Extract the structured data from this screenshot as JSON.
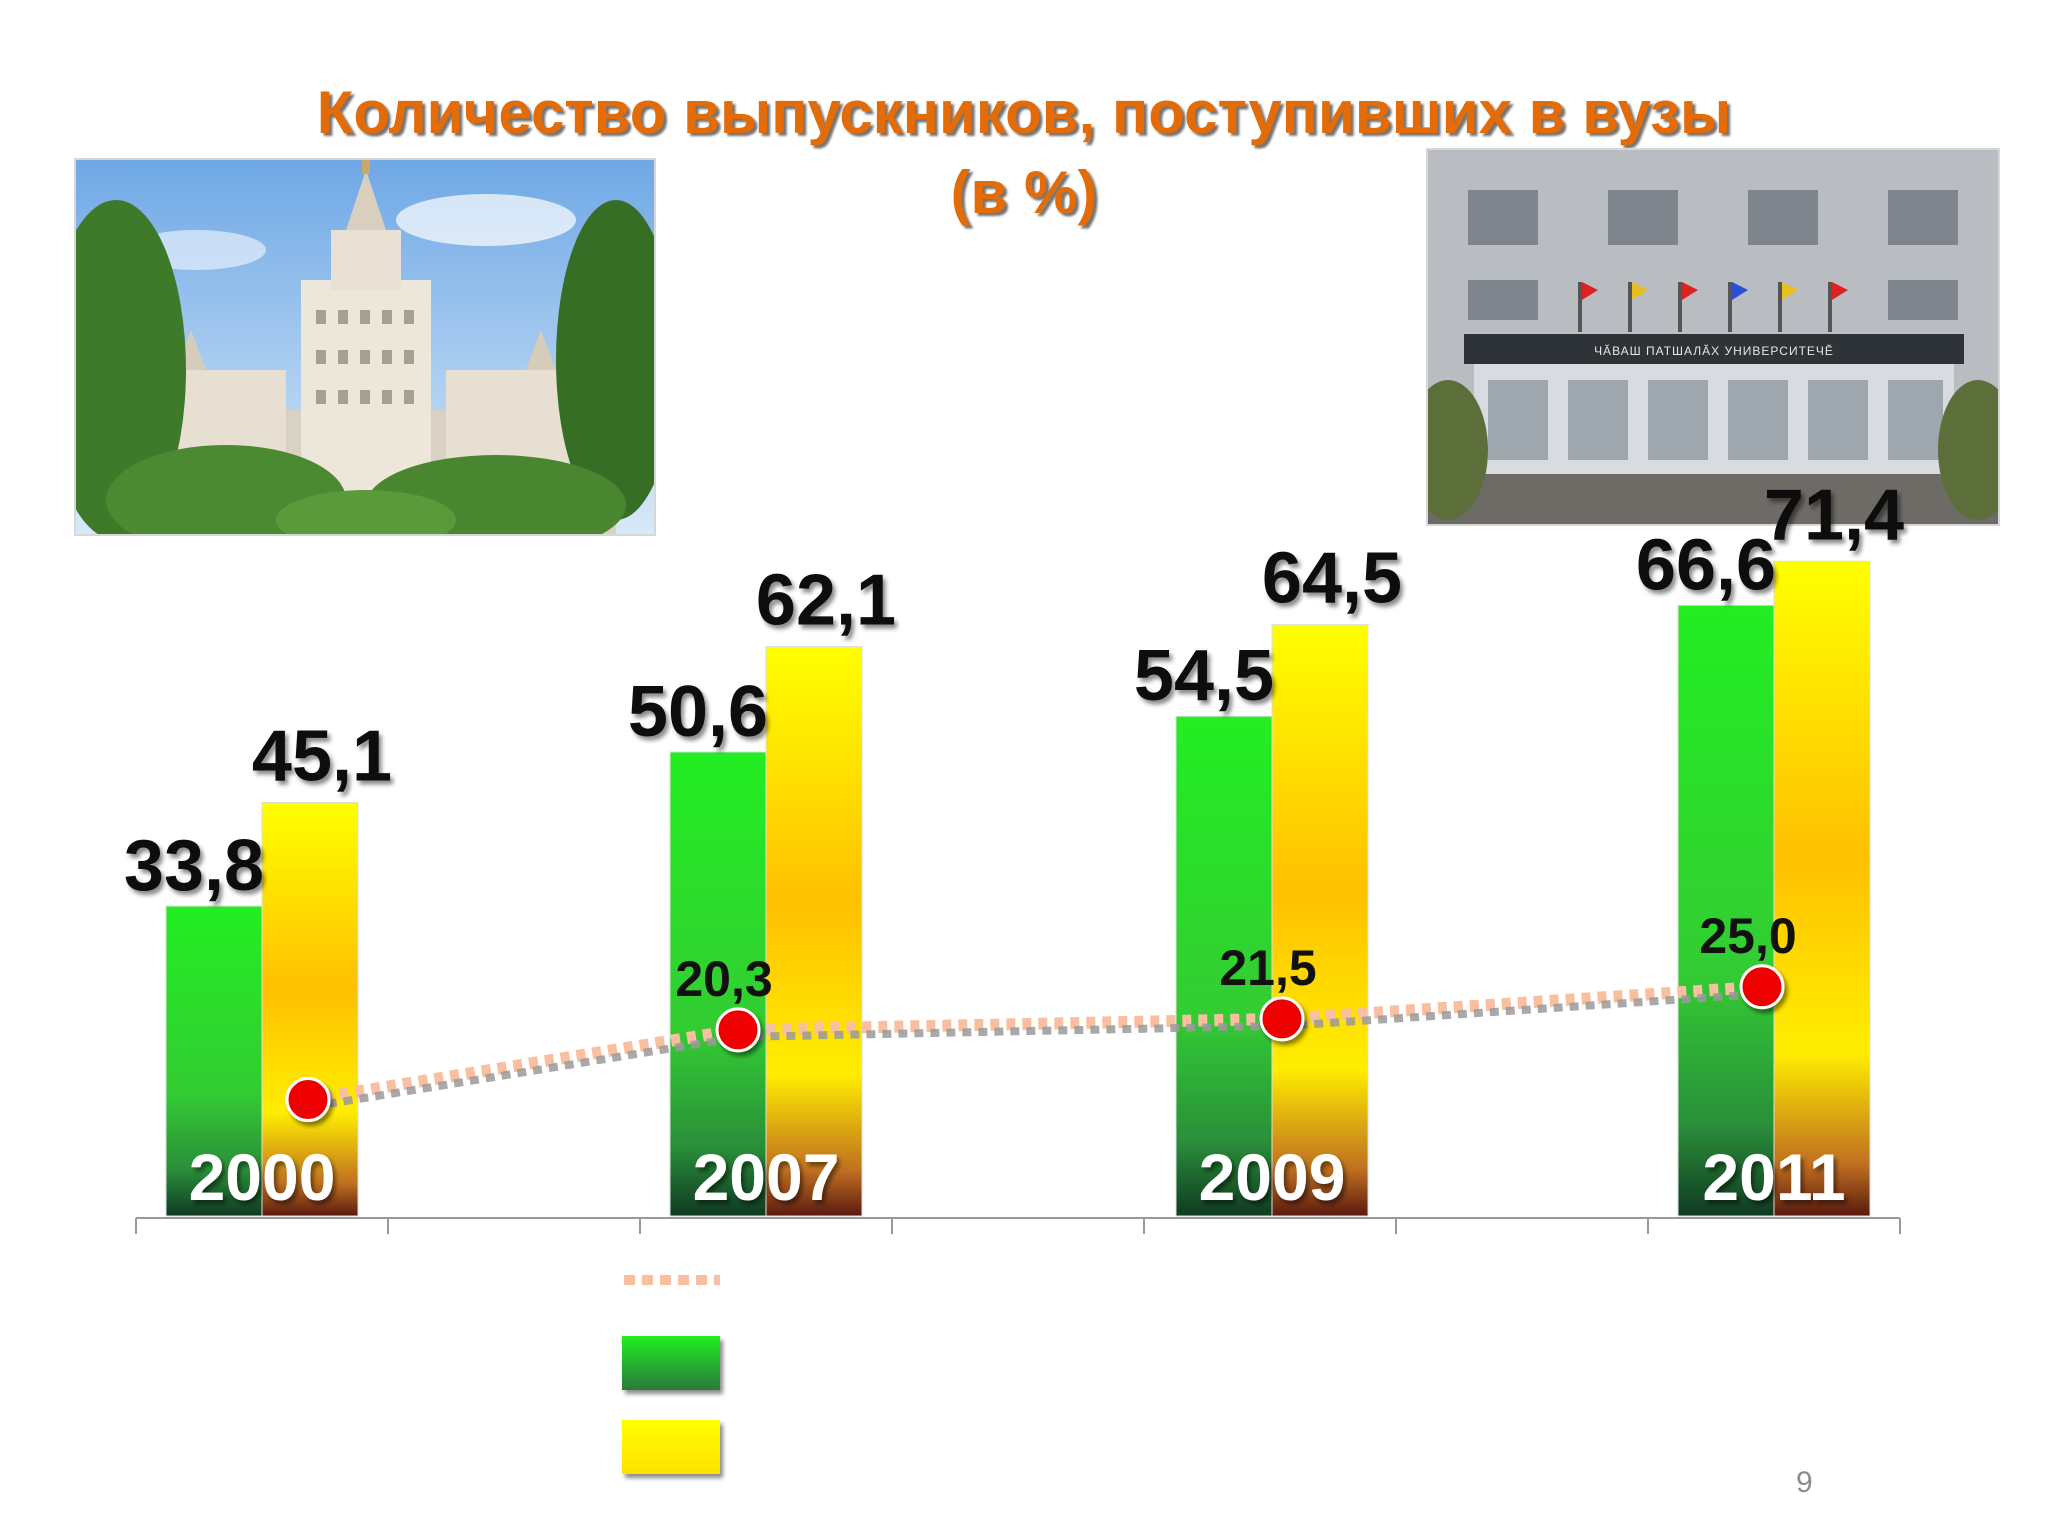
{
  "slide": {
    "title_line1": "Количество выпускников, поступивших в вузы",
    "title_line2": "(в %)",
    "page_number": "9",
    "images": [
      "university-main-building-photo",
      "university-entrance-photo"
    ],
    "sign_text": "ЧĂВАШ ПАТШАЛĂХ УНИВЕРСИТЕЧĔ"
  },
  "colors": {
    "title": "#E36C09",
    "green_bar": "#22EE22",
    "yellow_bar": "#FFF200",
    "orange_mid": "#FFC000",
    "marker": "#EE0000",
    "line_light": "#F8BFA0",
    "line_dark": "#9A9A9A"
  },
  "chart_data": {
    "type": "bar",
    "categories": [
      "2000",
      "2007",
      "2009",
      "2011"
    ],
    "series": [
      {
        "kind": "bar",
        "values": [
          33.8,
          50.6,
          54.5,
          66.6
        ],
        "labels": [
          "33,8",
          "50,6",
          "54,5",
          "66,6"
        ],
        "color": "green"
      },
      {
        "kind": "bar",
        "values": [
          45.1,
          62.1,
          64.5,
          71.4
        ],
        "labels": [
          "45,1",
          "62,1",
          "64,5",
          "71,4"
        ],
        "color": "yellow"
      },
      {
        "kind": "line",
        "values": [
          12.7,
          20.3,
          21.5,
          25.0
        ],
        "labels": [
          "",
          "20,3",
          "21,5",
          "25,0"
        ],
        "color": "red-markers"
      }
    ],
    "ylim": [
      0,
      100
    ],
    "title": "",
    "xlabel": "",
    "ylabel": "",
    "grid": false,
    "legend": [
      "",
      "",
      ""
    ],
    "legend_position": "bottom-center"
  }
}
